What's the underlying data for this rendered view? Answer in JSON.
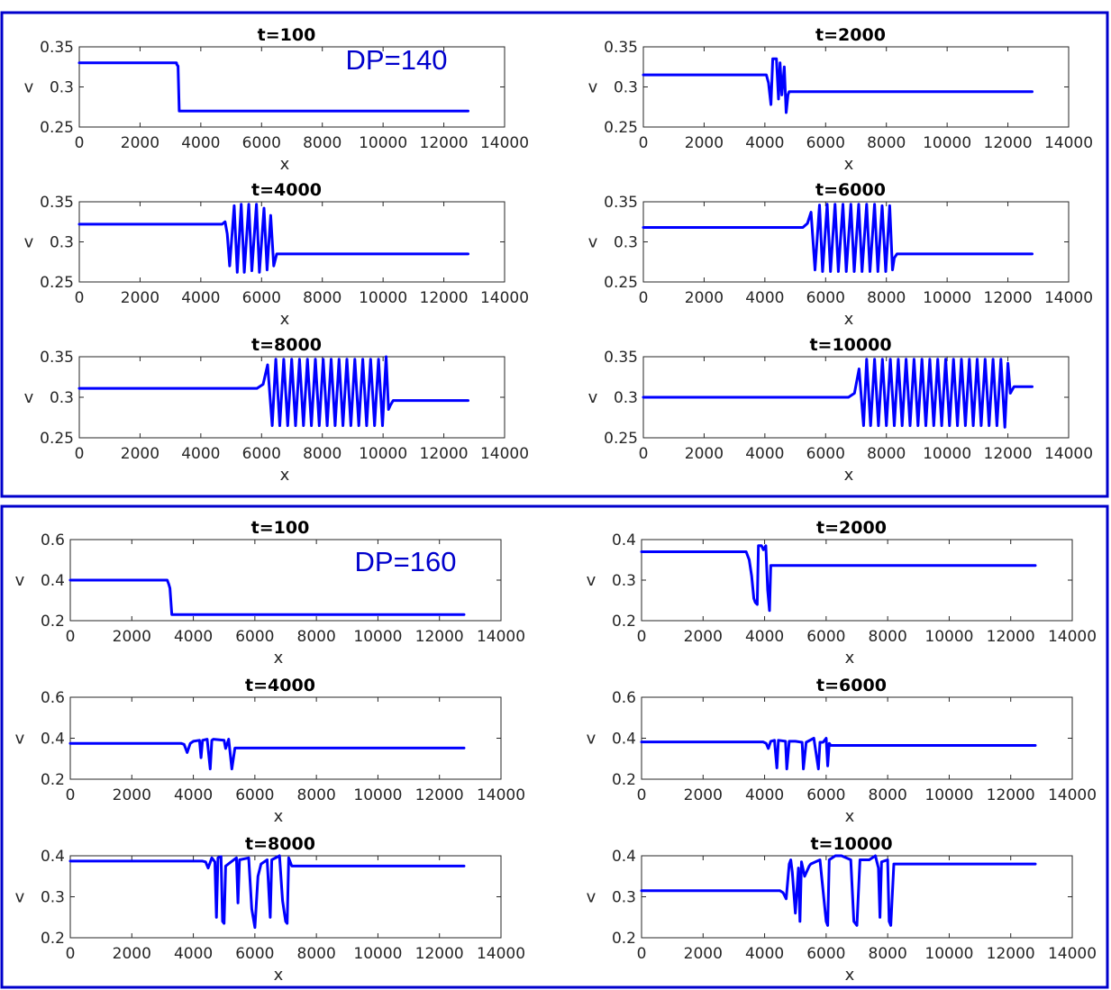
{
  "figure": {
    "accent_color": "#0000ff",
    "frame_color": "#0000cc",
    "x_axis_label": "x",
    "y_axis_label": "v",
    "x_ticks": [
      "0",
      "2000",
      "4000",
      "6000",
      "8000",
      "10000",
      "12000",
      "14000"
    ]
  },
  "chart_data": [
    {
      "group": "DP=140",
      "annotation": "DP=140",
      "type": "line",
      "title": "t=100",
      "xlabel": "x",
      "ylabel": "v",
      "xlim": [
        0,
        14000
      ],
      "ylim": [
        0.25,
        0.35
      ],
      "yticks": [
        "0.25",
        "0.3",
        "0.35"
      ],
      "x": [
        0,
        3200,
        3210,
        3250,
        3290,
        3330,
        12800
      ],
      "y": [
        0.33,
        0.33,
        0.328,
        0.326,
        0.27,
        0.27,
        0.27
      ]
    },
    {
      "group": "DP=140",
      "type": "line",
      "title": "t=2000",
      "xlabel": "x",
      "ylabel": "v",
      "xlim": [
        0,
        14000
      ],
      "ylim": [
        0.25,
        0.35
      ],
      "yticks": [
        "0.25",
        "0.3",
        "0.35"
      ],
      "x": [
        0,
        3900,
        4050,
        4120,
        4200,
        4260,
        4380,
        4450,
        4500,
        4560,
        4640,
        4700,
        4760,
        4800,
        4880,
        12800
      ],
      "y": [
        0.315,
        0.315,
        0.315,
        0.305,
        0.278,
        0.335,
        0.335,
        0.285,
        0.33,
        0.29,
        0.325,
        0.268,
        0.29,
        0.294,
        0.294,
        0.294
      ]
    },
    {
      "group": "DP=140",
      "type": "line",
      "title": "t=4000",
      "xlabel": "x",
      "ylabel": "v",
      "xlim": [
        0,
        14000
      ],
      "ylim": [
        0.25,
        0.35
      ],
      "yticks": [
        "0.25",
        "0.3",
        "0.35"
      ],
      "x": [
        0,
        4700,
        4800,
        4870,
        4950,
        5100,
        5200,
        5330,
        5430,
        5580,
        5680,
        5830,
        5930,
        6080,
        6180,
        6300,
        6400,
        6500,
        6550,
        12800
      ],
      "y": [
        0.322,
        0.322,
        0.325,
        0.31,
        0.27,
        0.345,
        0.262,
        0.347,
        0.262,
        0.347,
        0.264,
        0.347,
        0.262,
        0.342,
        0.265,
        0.333,
        0.27,
        0.285,
        0.285,
        0.285
      ]
    },
    {
      "group": "DP=140",
      "type": "line",
      "title": "t=6000",
      "xlabel": "x",
      "ylabel": "v",
      "xlim": [
        0,
        14000
      ],
      "ylim": [
        0.25,
        0.35
      ],
      "yticks": [
        "0.25",
        "0.3",
        "0.35"
      ],
      "x": [
        0,
        5250,
        5400,
        5520,
        5650,
        5800,
        5900,
        6050,
        6160,
        6310,
        6420,
        6570,
        6680,
        6830,
        6940,
        7090,
        7200,
        7350,
        7460,
        7610,
        7720,
        7860,
        7980,
        8110,
        8200,
        8260,
        8350,
        12800
      ],
      "y": [
        0.318,
        0.318,
        0.323,
        0.337,
        0.265,
        0.346,
        0.263,
        0.347,
        0.263,
        0.347,
        0.263,
        0.347,
        0.263,
        0.347,
        0.263,
        0.347,
        0.263,
        0.347,
        0.263,
        0.347,
        0.263,
        0.345,
        0.263,
        0.345,
        0.265,
        0.28,
        0.285,
        0.285
      ]
    },
    {
      "group": "DP=140",
      "type": "line",
      "title": "t=8000",
      "xlabel": "x",
      "ylabel": "v",
      "xlim": [
        0,
        14000
      ],
      "ylim": [
        0.25,
        0.35
      ],
      "yticks": [
        "0.25",
        "0.3",
        "0.35"
      ],
      "x": [
        0,
        5850,
        6050,
        6200,
        6350,
        6470,
        6600,
        6730,
        6860,
        6990,
        7120,
        7250,
        7380,
        7510,
        7640,
        7770,
        7900,
        8030,
        8160,
        8290,
        8420,
        8550,
        8680,
        8810,
        8940,
        9070,
        9200,
        9330,
        9460,
        9590,
        9720,
        9850,
        9980,
        10100,
        10180,
        10240,
        10330,
        12800
      ],
      "y": [
        0.311,
        0.311,
        0.316,
        0.34,
        0.265,
        0.347,
        0.265,
        0.347,
        0.265,
        0.347,
        0.265,
        0.347,
        0.265,
        0.347,
        0.265,
        0.347,
        0.265,
        0.347,
        0.265,
        0.347,
        0.265,
        0.347,
        0.265,
        0.347,
        0.265,
        0.347,
        0.265,
        0.347,
        0.265,
        0.347,
        0.265,
        0.347,
        0.265,
        0.35,
        0.285,
        0.29,
        0.296,
        0.296
      ]
    },
    {
      "group": "DP=140",
      "type": "line",
      "title": "t=10000",
      "xlabel": "x",
      "ylabel": "v",
      "xlim": [
        0,
        14000
      ],
      "ylim": [
        0.25,
        0.35
      ],
      "yticks": [
        "0.25",
        "0.3",
        "0.35"
      ],
      "x": [
        0,
        6750,
        6950,
        7100,
        7250,
        7350,
        7480,
        7610,
        7740,
        7870,
        8000,
        8130,
        8260,
        8390,
        8520,
        8650,
        8780,
        8910,
        9040,
        9170,
        9300,
        9430,
        9560,
        9690,
        9820,
        9950,
        10080,
        10210,
        10340,
        10470,
        10600,
        10730,
        10860,
        10990,
        11120,
        11250,
        11380,
        11510,
        11640,
        11770,
        11900,
        12000,
        12080,
        12200,
        12800
      ],
      "y": [
        0.3,
        0.3,
        0.305,
        0.335,
        0.265,
        0.347,
        0.265,
        0.347,
        0.265,
        0.347,
        0.265,
        0.347,
        0.265,
        0.347,
        0.265,
        0.347,
        0.265,
        0.347,
        0.265,
        0.347,
        0.265,
        0.347,
        0.265,
        0.347,
        0.265,
        0.347,
        0.265,
        0.347,
        0.265,
        0.347,
        0.265,
        0.347,
        0.265,
        0.347,
        0.265,
        0.347,
        0.265,
        0.347,
        0.265,
        0.347,
        0.263,
        0.342,
        0.305,
        0.313,
        0.313
      ]
    },
    {
      "group": "DP=160",
      "annotation": "DP=160",
      "type": "line",
      "title": "t=100",
      "xlabel": "x",
      "ylabel": "v",
      "xlim": [
        0,
        14000
      ],
      "ylim": [
        0.2,
        0.6
      ],
      "yticks": [
        "0.2",
        "0.4",
        "0.6"
      ],
      "x": [
        0,
        3150,
        3200,
        3240,
        3300,
        12800
      ],
      "y": [
        0.4,
        0.4,
        0.38,
        0.36,
        0.23,
        0.23
      ]
    },
    {
      "group": "DP=160",
      "type": "line",
      "title": "t=2000",
      "xlabel": "x",
      "ylabel": "v",
      "xlim": [
        0,
        14000
      ],
      "ylim": [
        0.2,
        0.4
      ],
      "yticks": [
        "0.2",
        "0.3",
        "0.4"
      ],
      "x": [
        0,
        3400,
        3500,
        3580,
        3650,
        3700,
        3760,
        3800,
        3900,
        3960,
        4040,
        4100,
        4160,
        4200,
        4260,
        12800
      ],
      "y": [
        0.37,
        0.37,
        0.35,
        0.31,
        0.255,
        0.245,
        0.24,
        0.385,
        0.385,
        0.375,
        0.385,
        0.275,
        0.225,
        0.336,
        0.336,
        0.336
      ]
    },
    {
      "group": "DP=160",
      "type": "line",
      "title": "t=4000",
      "xlabel": "x",
      "ylabel": "v",
      "xlim": [
        0,
        14000
      ],
      "ylim": [
        0.2,
        0.6
      ],
      "yticks": [
        "0.2",
        "0.4",
        "0.6"
      ],
      "x": [
        0,
        3600,
        3700,
        3800,
        3900,
        4000,
        4200,
        4250,
        4300,
        4450,
        4550,
        4600,
        4650,
        5000,
        5050,
        5150,
        5250,
        5350,
        12800
      ],
      "y": [
        0.375,
        0.375,
        0.37,
        0.33,
        0.375,
        0.385,
        0.39,
        0.305,
        0.39,
        0.395,
        0.25,
        0.39,
        0.395,
        0.39,
        0.35,
        0.395,
        0.25,
        0.352,
        0.352
      ]
    },
    {
      "group": "DP=160",
      "type": "line",
      "title": "t=6000",
      "xlabel": "x",
      "ylabel": "v",
      "xlim": [
        0,
        14000
      ],
      "ylim": [
        0.2,
        0.6
      ],
      "yticks": [
        "0.2",
        "0.4",
        "0.6"
      ],
      "x": [
        0,
        3950,
        4050,
        4120,
        4200,
        4320,
        4400,
        4450,
        4680,
        4720,
        4800,
        5000,
        5220,
        5260,
        5350,
        5600,
        5750,
        5800,
        5900,
        6000,
        6050,
        6100,
        6150,
        12800
      ],
      "y": [
        0.382,
        0.382,
        0.375,
        0.35,
        0.385,
        0.39,
        0.255,
        0.39,
        0.385,
        0.25,
        0.385,
        0.385,
        0.38,
        0.25,
        0.38,
        0.4,
        0.25,
        0.38,
        0.38,
        0.4,
        0.265,
        0.375,
        0.365,
        0.365
      ]
    },
    {
      "group": "DP=160",
      "type": "line",
      "title": "t=8000",
      "xlabel": "x",
      "ylabel": "v",
      "xlim": [
        0,
        14000
      ],
      "ylim": [
        0.2,
        0.4
      ],
      "yticks": [
        "0.2",
        "0.3",
        "0.4"
      ],
      "x": [
        0,
        4300,
        4400,
        4480,
        4600,
        4700,
        4750,
        4800,
        4900,
        4950,
        5000,
        5050,
        5400,
        5450,
        5500,
        5800,
        5900,
        6000,
        6100,
        6200,
        6400,
        6500,
        6550,
        6800,
        6900,
        7000,
        7050,
        7100,
        7200,
        12800
      ],
      "y": [
        0.387,
        0.387,
        0.385,
        0.37,
        0.395,
        0.385,
        0.25,
        0.395,
        0.398,
        0.24,
        0.235,
        0.375,
        0.395,
        0.285,
        0.39,
        0.395,
        0.27,
        0.225,
        0.35,
        0.38,
        0.39,
        0.25,
        0.39,
        0.4,
        0.29,
        0.24,
        0.235,
        0.395,
        0.375,
        0.375
      ]
    },
    {
      "group": "DP=160",
      "type": "line",
      "title": "t=10000",
      "xlabel": "x",
      "ylabel": "v",
      "xlim": [
        0,
        14000
      ],
      "ylim": [
        0.2,
        0.4
      ],
      "yticks": [
        "0.2",
        "0.3",
        "0.4"
      ],
      "x": [
        0,
        4500,
        4600,
        4700,
        4800,
        4850,
        4900,
        5000,
        5100,
        5150,
        5200,
        5300,
        5450,
        5500,
        5800,
        6000,
        6050,
        6100,
        6300,
        6500,
        6800,
        6900,
        7000,
        7100,
        7400,
        7600,
        7700,
        7750,
        7800,
        8000,
        8050,
        8100,
        8200,
        12800
      ],
      "y": [
        0.315,
        0.315,
        0.31,
        0.295,
        0.38,
        0.39,
        0.36,
        0.26,
        0.37,
        0.24,
        0.385,
        0.35,
        0.375,
        0.38,
        0.39,
        0.24,
        0.23,
        0.39,
        0.4,
        0.4,
        0.39,
        0.24,
        0.23,
        0.39,
        0.39,
        0.4,
        0.37,
        0.25,
        0.385,
        0.39,
        0.24,
        0.23,
        0.38,
        0.38
      ]
    }
  ]
}
